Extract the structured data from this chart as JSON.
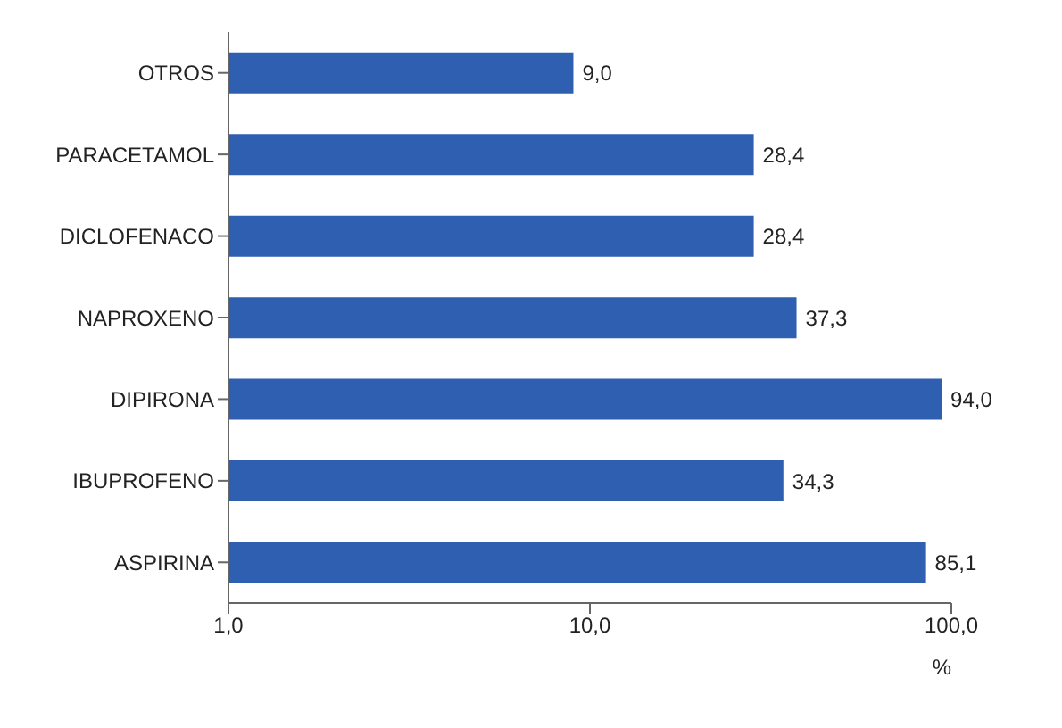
{
  "chart_data": {
    "type": "bar",
    "orientation": "horizontal",
    "xlabel": "%",
    "categories": [
      "OTROS",
      "PARACETAMOL",
      "DICLOFENACO",
      "NAPROXENO",
      "DIPIRONA",
      "IBUPROFENO",
      "ASPIRINA"
    ],
    "values": [
      9.0,
      28.4,
      28.4,
      37.3,
      94.0,
      34.3,
      85.1
    ],
    "value_labels": [
      "9,0",
      "28,4",
      "28,4",
      "37,3",
      "94,0",
      "34,3",
      "85,1"
    ],
    "color": "#2e5fb0",
    "log": "x",
    "xlim": [
      1,
      100
    ],
    "xticks": [
      {
        "value": 1,
        "label": "1,0"
      },
      {
        "value": 10,
        "label": "10,0"
      },
      {
        "value": 100,
        "label": "100,0"
      }
    ],
    "grid": false
  }
}
